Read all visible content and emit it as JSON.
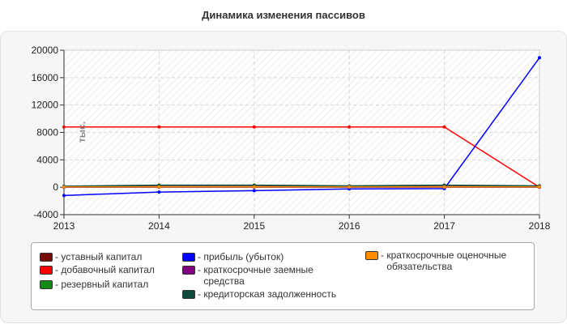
{
  "chart_data": {
    "type": "line",
    "title": "Динамика изменения пассивов",
    "ylabel": "тыс.",
    "xlabel": "",
    "x": [
      2013,
      2014,
      2015,
      2016,
      2017,
      2018
    ],
    "ylim": [
      -4000,
      20000
    ],
    "yticks": [
      -4000,
      0,
      4000,
      8000,
      12000,
      16000,
      20000
    ],
    "grid": true,
    "legend_position": "bottom",
    "series": [
      {
        "name": "уставный капитал",
        "color": "#7a0a0a",
        "values": [
          100,
          100,
          100,
          100,
          100,
          100
        ]
      },
      {
        "name": "добавочный капитал",
        "color": "#ff0000",
        "values": [
          8800,
          8800,
          8800,
          8800,
          8800,
          0
        ]
      },
      {
        "name": "резервный капитал",
        "color": "#138a13",
        "values": [
          20,
          20,
          20,
          20,
          20,
          20
        ]
      },
      {
        "name": "прибыль (убыток)",
        "color": "#0000ff",
        "values": [
          -1200,
          -700,
          -500,
          -250,
          -200,
          18900
        ]
      },
      {
        "name": "краткосрочные заемные средства",
        "color": "#800080",
        "values": [
          0,
          0,
          0,
          0,
          0,
          0
        ]
      },
      {
        "name": "кредиторская задолженность",
        "color": "#0d4a3a",
        "values": [
          150,
          300,
          300,
          200,
          300,
          200
        ]
      },
      {
        "name": "краткосрочные оценочные обязательства",
        "color": "#ff8c00",
        "values": [
          50,
          50,
          50,
          50,
          50,
          50
        ]
      }
    ]
  }
}
